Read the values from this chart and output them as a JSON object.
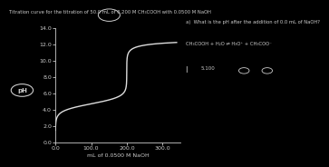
{
  "title": "Titration curve for the titration of 50.0 mL of 0.200 M CH₃COOH with 0.0500 M NaOH",
  "xlabel": "mL of 0.0500 M NaOH",
  "ylabel": "pH",
  "xlim": [
    0,
    350
  ],
  "ylim": [
    0,
    14
  ],
  "yticks": [
    0.0,
    2.0,
    4.0,
    6.0,
    8.0,
    10.0,
    12.0,
    14.0
  ],
  "xticks": [
    0.0,
    100.0,
    200.0,
    300.0
  ],
  "xtick_labels": [
    "0.0",
    "100.0",
    "200.0",
    "300.0"
  ],
  "ytick_labels": [
    "0.0",
    "2.0",
    "4.0",
    "6.0",
    "8.0",
    "10.0",
    "12.0",
    "14.0"
  ],
  "background_color": "#000000",
  "axes_color": "#cccccc",
  "curve_color": "#dddddd",
  "annotation_text_a": "a)  What is the pH after the addition of 0.0 mL of NaOH?",
  "annotation_eq": "CH₃COOH + H₂O ⇌ H₃O⁺ + CH₃COO⁻",
  "annotation_sub": "5.100",
  "weak_acid_vol_mL": 50.0,
  "weak_acid_conc": 0.2,
  "strong_base_conc": 0.05,
  "pKa": 4.74
}
